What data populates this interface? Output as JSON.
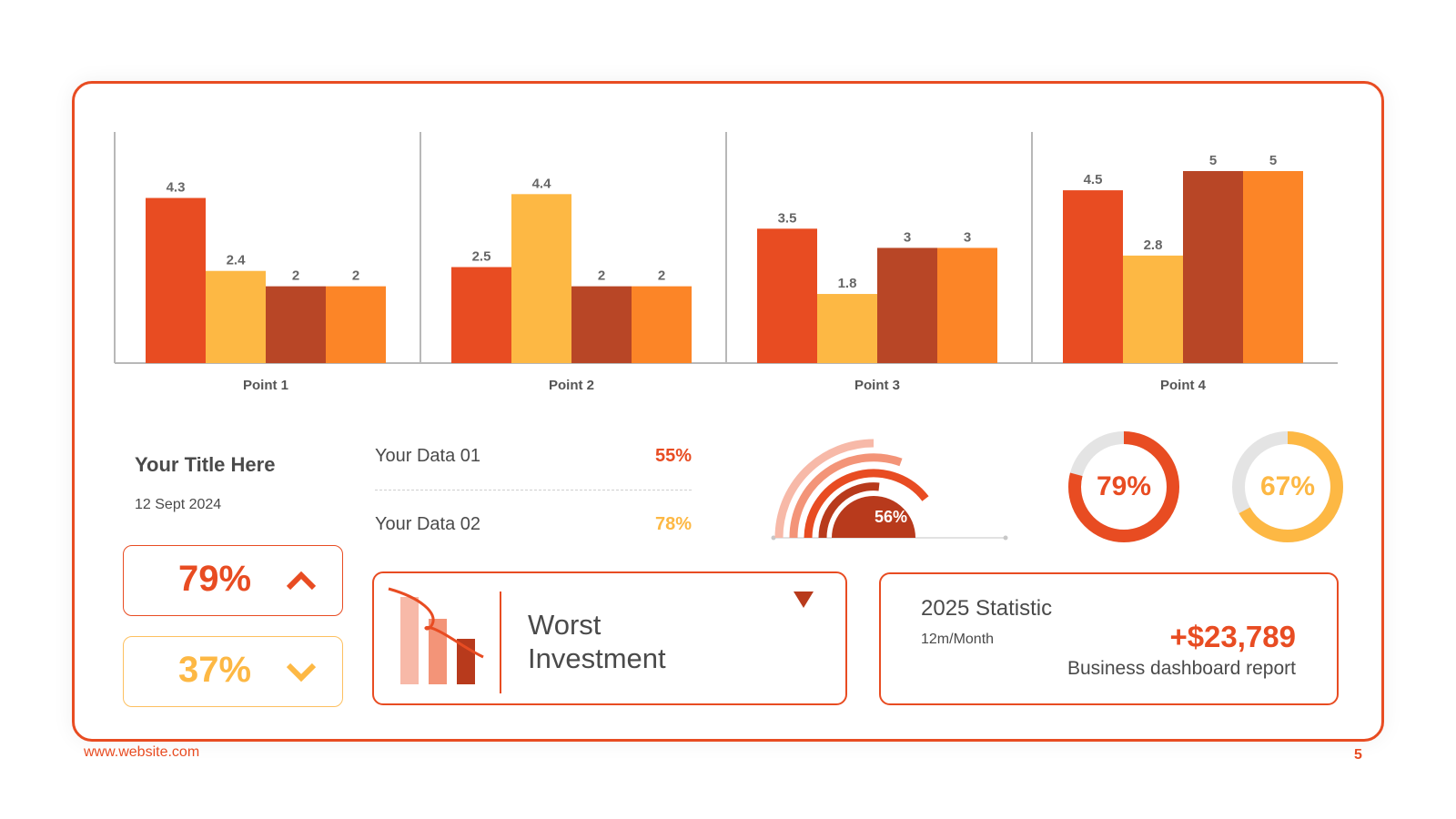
{
  "chart_data": {
    "type": "bar",
    "categories": [
      "Point 1",
      "Point 2",
      "Point 3",
      "Point 4"
    ],
    "series": [
      {
        "values": [
          4.3,
          2.5,
          3.5,
          4.5
        ]
      },
      {
        "values": [
          2.4,
          4.4,
          1.8,
          2.8
        ]
      },
      {
        "values": [
          2,
          2,
          3,
          5
        ]
      },
      {
        "values": [
          2,
          2,
          3,
          5
        ]
      }
    ],
    "data_labels": [
      [
        "4.3",
        "2.4",
        "2",
        "2"
      ],
      [
        "2.5",
        "4.4",
        "2",
        "2"
      ],
      [
        "3.5",
        "1.8",
        "3",
        "3"
      ],
      [
        "4.5",
        "2.8",
        "5",
        "5"
      ]
    ],
    "ylim": [
      0,
      5.5
    ],
    "colors": [
      "#e84c22",
      "#fdb844",
      "#b84626",
      "#fc8527"
    ],
    "grid": false,
    "legend": "none"
  },
  "summary": {
    "title": "Your Title Here",
    "date": "12 Sept 2024",
    "kpi_up": {
      "value": "79%",
      "icon": "chevron-up-icon",
      "color": "#e84c22"
    },
    "kpi_down": {
      "value": "37%",
      "icon": "chevron-down-icon",
      "color": "#fdb844"
    }
  },
  "data_rows": [
    {
      "label": "Your Data 01",
      "value": "55%"
    },
    {
      "label": "Your Data 02",
      "value": "78%"
    }
  ],
  "gauge": {
    "label": "56%",
    "value": 56
  },
  "donuts": [
    {
      "label": "79%",
      "value": 79,
      "color": "#e84c22"
    },
    {
      "label": "67%",
      "value": 67,
      "color": "#fdb844"
    }
  ],
  "investment": {
    "title_line1": "Worst",
    "title_line2": "Investment",
    "icon": "declining-bars-icon"
  },
  "statistic": {
    "title": "2025 Statistic",
    "subtitle": "12m/Month",
    "amount": "+$23,789",
    "description": "Business dashboard report"
  },
  "footer": {
    "website": "www.website.com",
    "page": "5"
  }
}
